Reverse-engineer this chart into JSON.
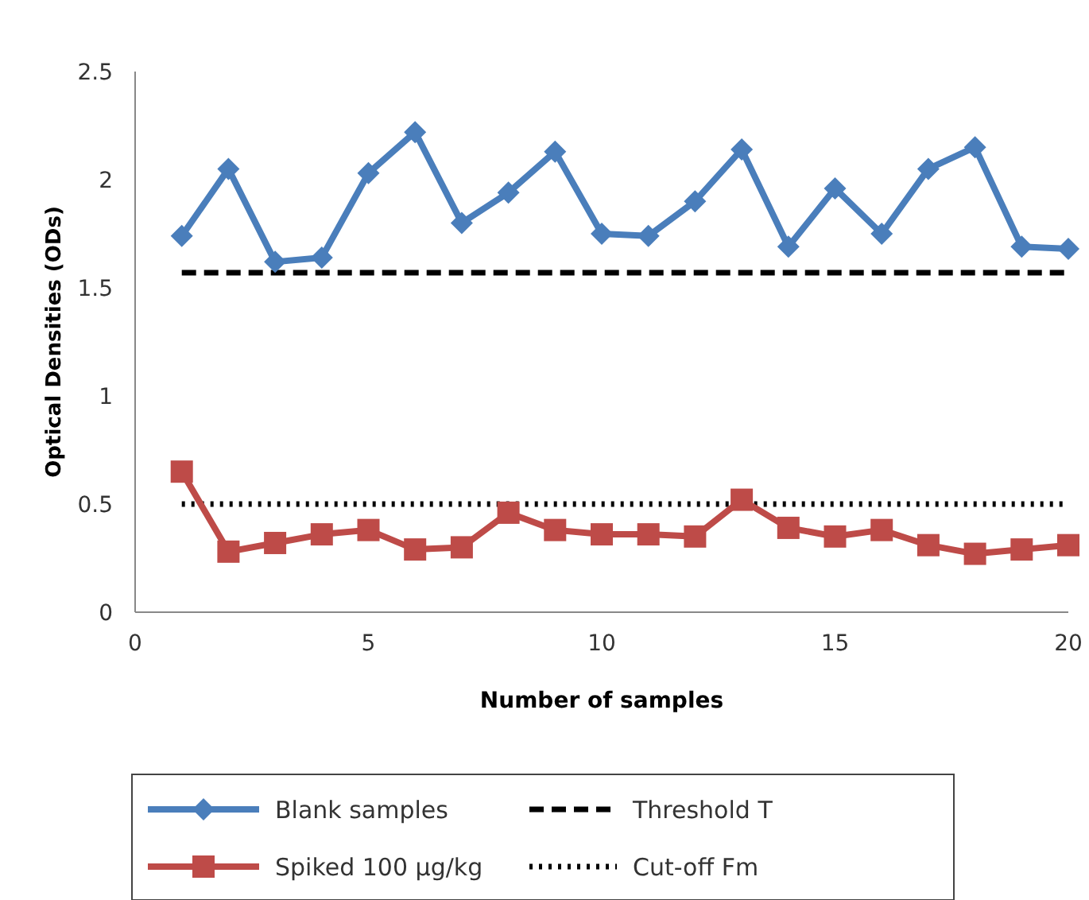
{
  "chart_data": {
    "type": "line",
    "xlabel": "Number of samples",
    "ylabel": "Optical Densities (ODs)",
    "xlim": [
      0,
      20
    ],
    "xticks": [
      0,
      5,
      10,
      15,
      20
    ],
    "ylim": [
      0,
      2.5
    ],
    "yticks": [
      0,
      0.5,
      1,
      1.5,
      2,
      2.5
    ],
    "grid": false,
    "legend": "bottom",
    "line_style": "solid",
    "series": [
      {
        "name": "Blank samples",
        "color": "#4a7ebb",
        "marker": "diamond",
        "x": [
          1,
          2,
          3,
          4,
          5,
          6,
          7,
          8,
          9,
          10,
          11,
          12,
          13,
          14,
          15,
          16,
          17,
          18,
          19,
          20
        ],
        "values": [
          1.74,
          2.05,
          1.62,
          1.64,
          2.03,
          2.22,
          1.8,
          1.94,
          2.13,
          1.75,
          1.74,
          1.9,
          2.14,
          1.69,
          1.96,
          1.75,
          2.05,
          2.15,
          1.69,
          1.68
        ]
      },
      {
        "name": "Spiked 100 µg/kg",
        "color": "#be4b48",
        "marker": "square",
        "x": [
          1,
          2,
          3,
          4,
          5,
          6,
          7,
          8,
          9,
          10,
          11,
          12,
          13,
          14,
          15,
          16,
          17,
          18,
          19,
          20
        ],
        "values": [
          0.65,
          0.28,
          0.32,
          0.36,
          0.38,
          0.29,
          0.3,
          0.46,
          0.38,
          0.36,
          0.36,
          0.35,
          0.52,
          0.39,
          0.35,
          0.38,
          0.31,
          0.27,
          0.29,
          0.31
        ]
      }
    ],
    "ref_lines": [
      {
        "axis": "y",
        "value": 1.57,
        "label": "Threshold T",
        "color": "#000000",
        "line_style": "dashed"
      },
      {
        "axis": "y",
        "value": 0.5,
        "label": "Cut-off Fm",
        "color": "#000000",
        "line_style": "dotted"
      }
    ]
  }
}
